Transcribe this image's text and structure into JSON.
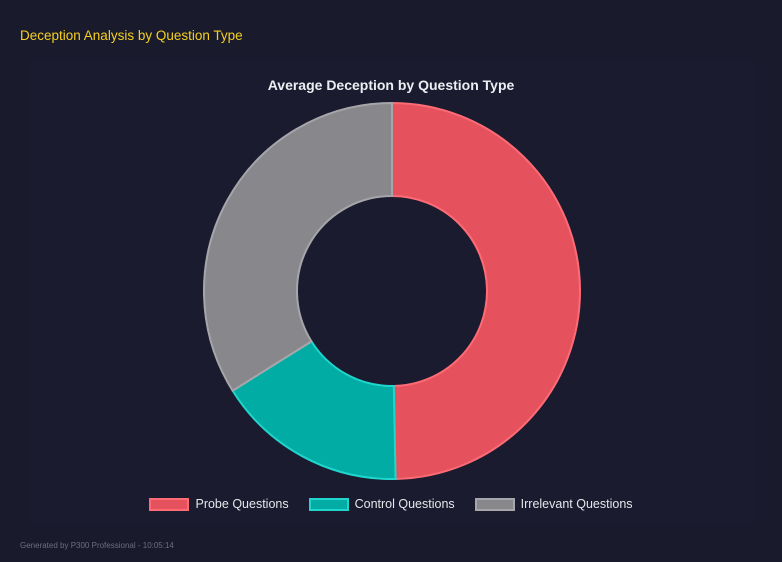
{
  "header": {
    "title": "Deception Analysis by Question Type"
  },
  "footer": {
    "text": "Generated by P300 Professional - 10:05:14"
  },
  "chart_data": {
    "type": "doughnut",
    "title": "Average Deception by Question Type",
    "categories": [
      "Probe Questions",
      "Control Questions",
      "Irrelevant Questions"
    ],
    "values": [
      49.7,
      16.4,
      33.9
    ],
    "colors": [
      "#e5525e",
      "#00aca4",
      "#88888c"
    ],
    "border_colors": [
      "#ff6b75",
      "#1fd6cc",
      "#a6a6aa"
    ],
    "legend": "bottom"
  }
}
